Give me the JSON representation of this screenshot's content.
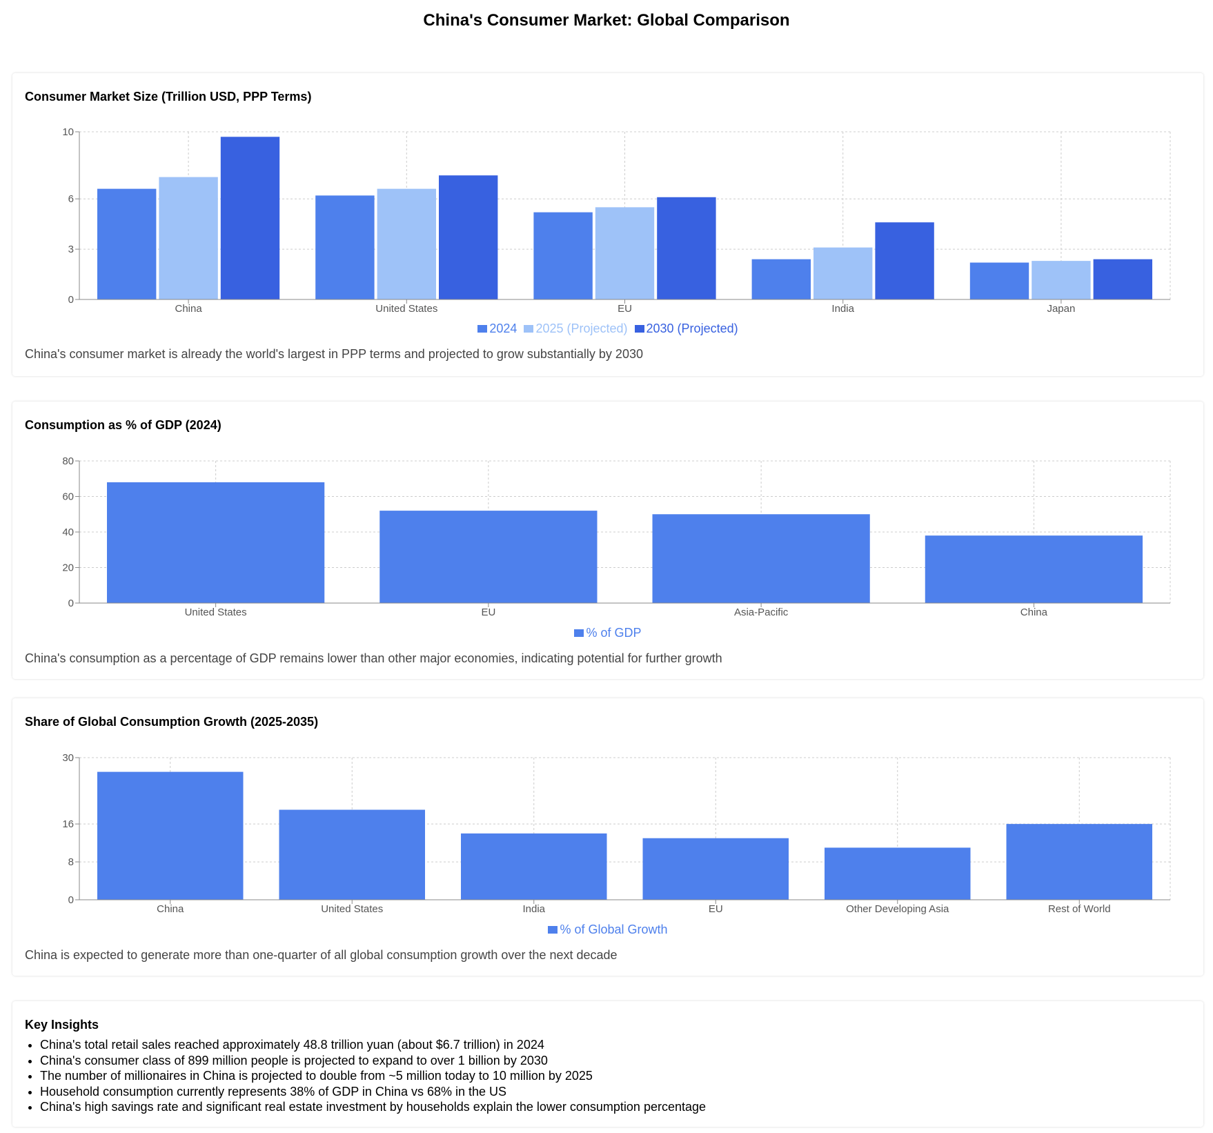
{
  "page_title": "China's Consumer Market: Global Comparison",
  "colors": {
    "series_2024": "#4e80ec",
    "series_2025": "#9ec2f8",
    "series_2030": "#3861e0",
    "bar": "#4e80ec",
    "grid": "#cccccc",
    "axis": "#888888"
  },
  "chart_data": [
    {
      "type": "bar",
      "title": "Consumer Market Size (Trillion USD, PPP Terms)",
      "categories": [
        "China",
        "United States",
        "EU",
        "India",
        "Japan"
      ],
      "series": [
        {
          "name": "2024",
          "values": [
            6.6,
            6.2,
            5.2,
            2.4,
            2.2
          ],
          "color": "#4e80ec"
        },
        {
          "name": "2025 (Projected)",
          "values": [
            7.3,
            6.6,
            5.5,
            3.1,
            2.3
          ],
          "color": "#9ec2f8"
        },
        {
          "name": "2030 (Projected)",
          "values": [
            9.7,
            7.4,
            6.1,
            4.6,
            2.4
          ],
          "color": "#3861e0"
        }
      ],
      "yticks": [
        0,
        3,
        6,
        10
      ],
      "ylim": [
        0,
        10
      ],
      "grid": true,
      "legend": "bottom-center",
      "caption": "China's consumer market is already the world's largest in PPP terms and projected to grow substantially by 2030"
    },
    {
      "type": "bar",
      "title": "Consumption as % of GDP (2024)",
      "categories": [
        "United States",
        "EU",
        "Asia-Pacific",
        "China"
      ],
      "series": [
        {
          "name": "% of GDP",
          "values": [
            68,
            52,
            50,
            38
          ],
          "color": "#4e80ec"
        }
      ],
      "yticks": [
        0,
        20,
        40,
        60,
        80
      ],
      "ylim": [
        0,
        80
      ],
      "grid": true,
      "legend": "bottom-center",
      "caption": "China's consumption as a percentage of GDP remains lower than other major economies, indicating potential for further growth"
    },
    {
      "type": "bar",
      "title": "Share of Global Consumption Growth (2025-2035)",
      "categories": [
        "China",
        "United States",
        "India",
        "EU",
        "Other Developing Asia",
        "Rest of World"
      ],
      "series": [
        {
          "name": "% of Global Growth",
          "values": [
            27,
            19,
            14,
            13,
            11,
            16
          ],
          "color": "#4e80ec"
        }
      ],
      "yticks": [
        0,
        8,
        16,
        30
      ],
      "ylim": [
        0,
        30
      ],
      "grid": true,
      "legend": "bottom-center",
      "caption": "China is expected to generate more than one-quarter of all global consumption growth over the next decade"
    }
  ],
  "insights": {
    "title": "Key Insights",
    "items": [
      "China's total retail sales reached approximately 48.8 trillion yuan (about $6.7 trillion) in 2024",
      "China's consumer class of 899 million people is projected to expand to over 1 billion by 2030",
      "The number of millionaires in China is projected to double from ~5 million today to 10 million by 2025",
      "Household consumption currently represents 38% of GDP in China vs 68% in the US",
      "China's high savings rate and significant real estate investment by households explain the lower consumption percentage"
    ]
  }
}
